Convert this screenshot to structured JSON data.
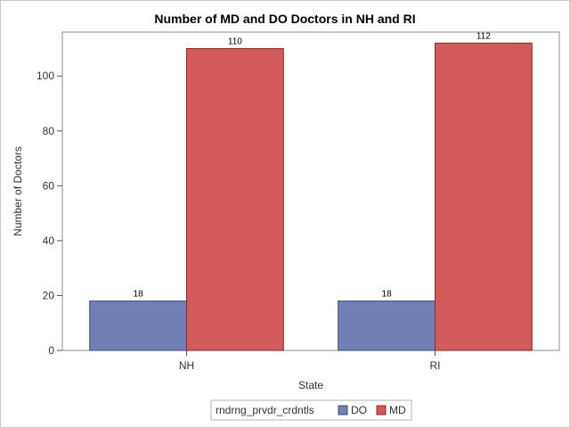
{
  "chart_data": {
    "type": "bar",
    "title": "Number of MD and DO Doctors in NH and RI",
    "xlabel": "State",
    "ylabel": "Number of Doctors",
    "categories": [
      "NH",
      "RI"
    ],
    "series": [
      {
        "name": "DO",
        "values": [
          18,
          18
        ],
        "color": "#7080b4"
      },
      {
        "name": "MD",
        "values": [
          110,
          112
        ],
        "color": "#d35a5a"
      }
    ],
    "ylim": [
      0,
      116
    ],
    "yticks": [
      0,
      20,
      40,
      60,
      80,
      100
    ],
    "grid": false,
    "legend": {
      "title": "rndrng_prvdr_crdntls",
      "placement": "bottom-center"
    }
  }
}
